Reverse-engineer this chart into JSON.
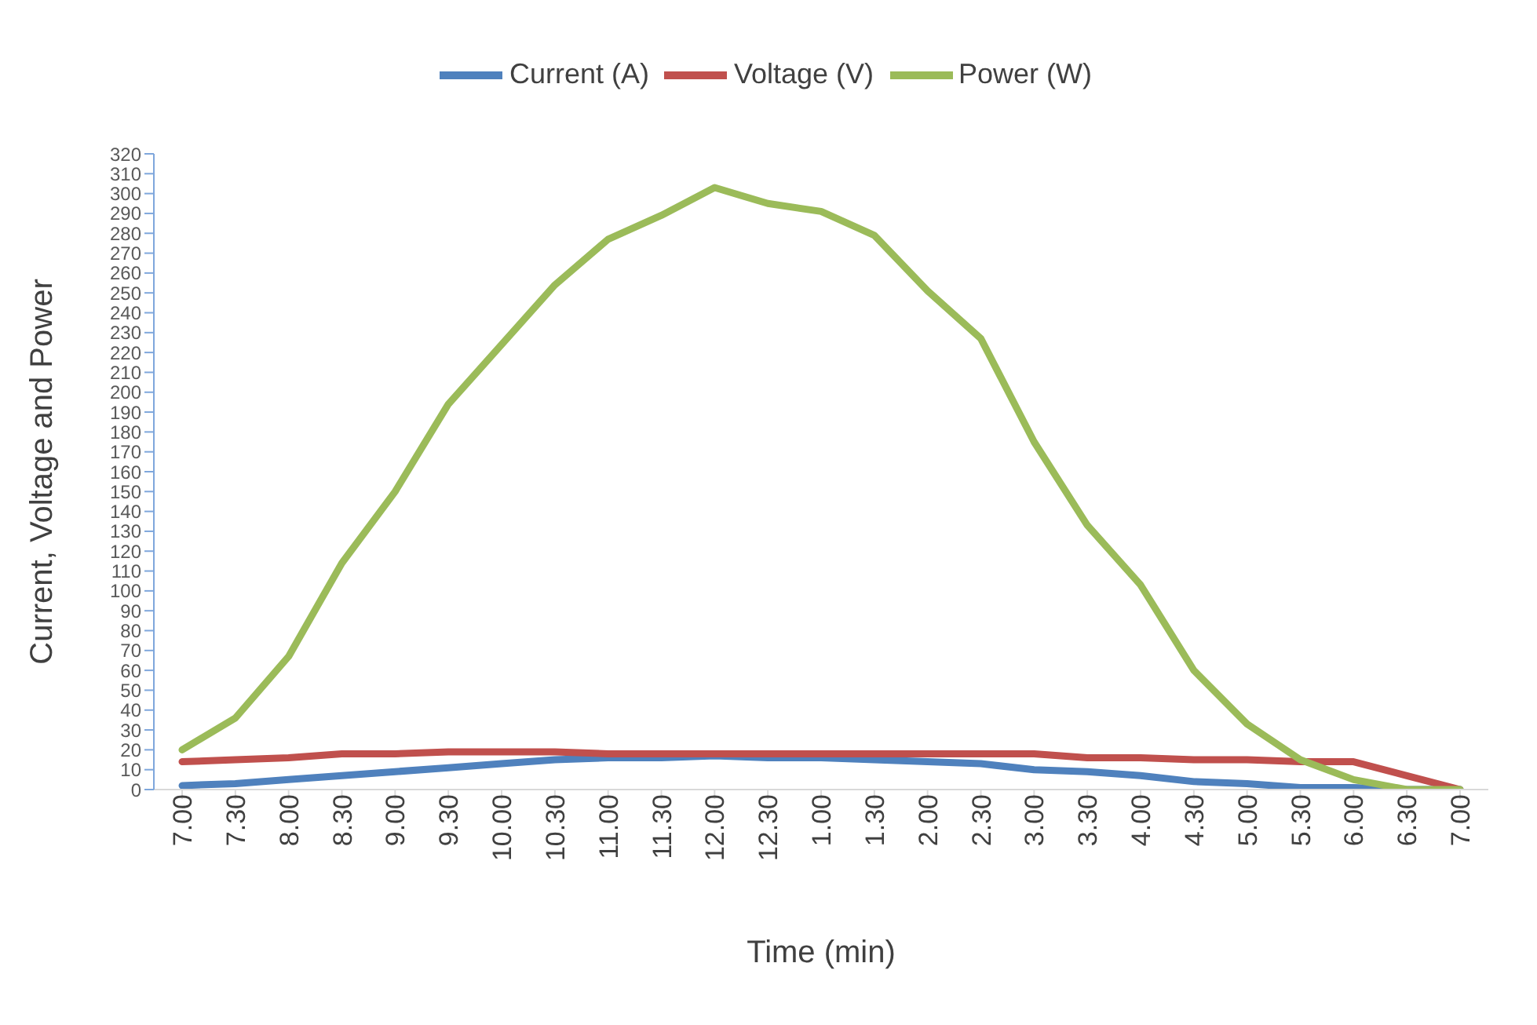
{
  "chart_data": {
    "type": "line",
    "xlabel": "Time (min)",
    "ylabel": "Current, Voltage and Power",
    "categories": [
      "7.00",
      "7.30",
      "8.00",
      "8.30",
      "9.00",
      "9.30",
      "10.00",
      "10.30",
      "11.00",
      "11.30",
      "12.00",
      "12.30",
      "1.00",
      "1.30",
      "2.00",
      "2.30",
      "3.00",
      "3.30",
      "4.00",
      "4.30",
      "5.00",
      "5.30",
      "6.00",
      "6.30",
      "7.00"
    ],
    "series": [
      {
        "name": "Current (A)",
        "color": "#4f81bd",
        "values": [
          2,
          3,
          5,
          7,
          9,
          11,
          13,
          15,
          16,
          16,
          17,
          16,
          16,
          15,
          14,
          13,
          10,
          9,
          7,
          4,
          3,
          1,
          1,
          0,
          0
        ]
      },
      {
        "name": "Voltage (V)",
        "color": "#c0504d",
        "values": [
          14,
          15,
          16,
          18,
          18,
          19,
          19,
          19,
          18,
          18,
          18,
          18,
          18,
          18,
          18,
          18,
          18,
          16,
          16,
          15,
          15,
          14,
          14,
          7,
          0
        ]
      },
      {
        "name": "Power (W)",
        "color": "#9bbb59",
        "values": [
          20,
          36,
          67,
          114,
          150,
          194,
          224,
          254,
          277,
          289,
          303,
          295,
          291,
          279,
          251,
          227,
          175,
          133,
          103,
          60,
          33,
          15,
          5,
          0,
          0
        ]
      }
    ],
    "ylim": [
      0,
      320
    ],
    "yticks": [
      0,
      10,
      20,
      30,
      40,
      50,
      60,
      70,
      80,
      90,
      100,
      110,
      120,
      130,
      140,
      150,
      160,
      170,
      180,
      190,
      200,
      210,
      220,
      230,
      240,
      250,
      260,
      270,
      280,
      290,
      300,
      310,
      320
    ],
    "grid": false,
    "legend": "top",
    "marker": "none",
    "line_style": "solid"
  }
}
